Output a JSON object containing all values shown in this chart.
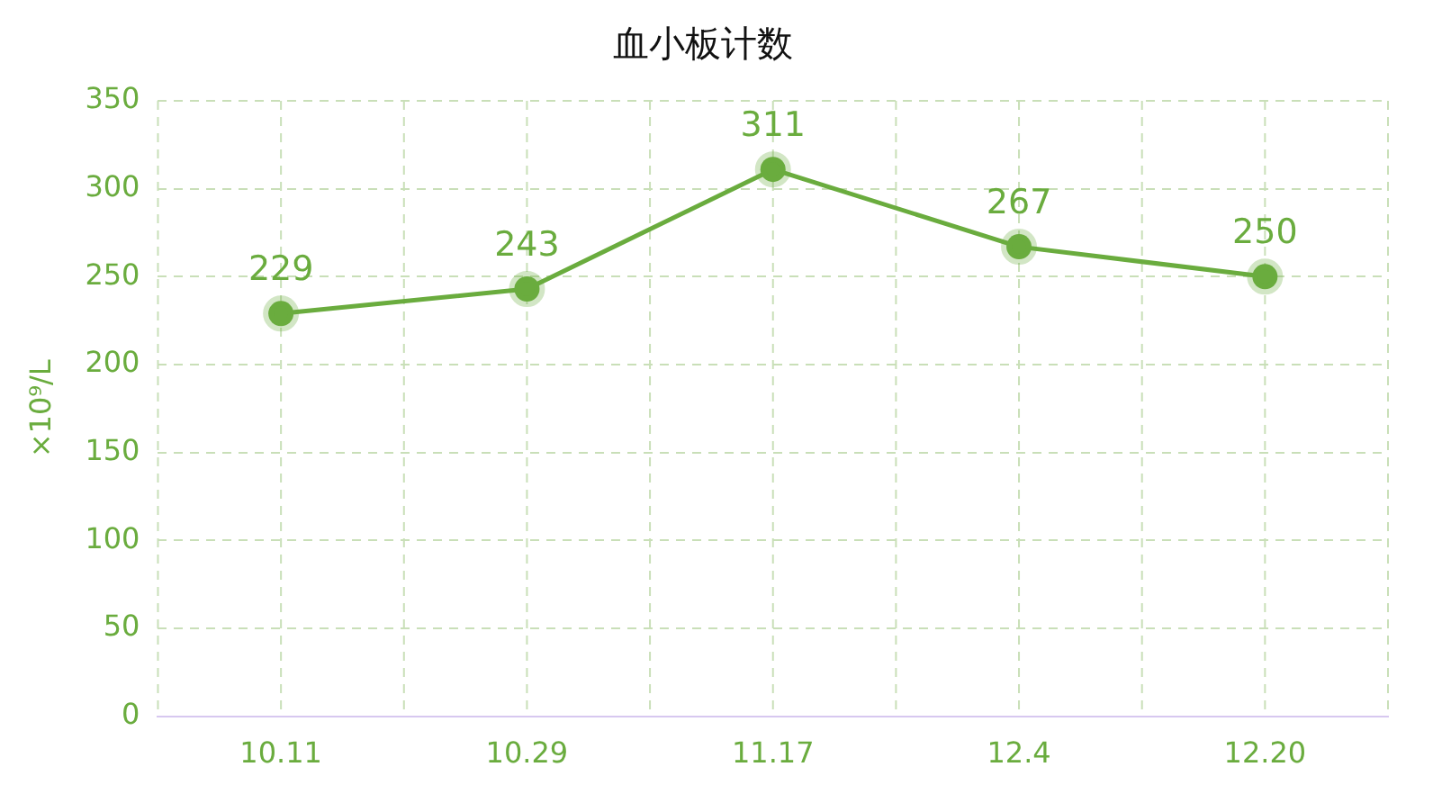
{
  "chart_data": {
    "type": "line",
    "title": "血小板计数",
    "ylabel": "×10⁹/L",
    "categories": [
      "10.11",
      "10.29",
      "11.17",
      "12.4",
      "12.20"
    ],
    "series": [
      {
        "color": "#6aac3e",
        "values": [
          229,
          243,
          311,
          267,
          250
        ]
      }
    ],
    "ylim": [
      0,
      350
    ],
    "yticks": [
      0,
      50,
      100,
      150,
      200,
      250,
      300,
      350
    ],
    "grid": true,
    "marker": "circle",
    "line_style": "solid",
    "data_labels": true,
    "legend": false
  }
}
